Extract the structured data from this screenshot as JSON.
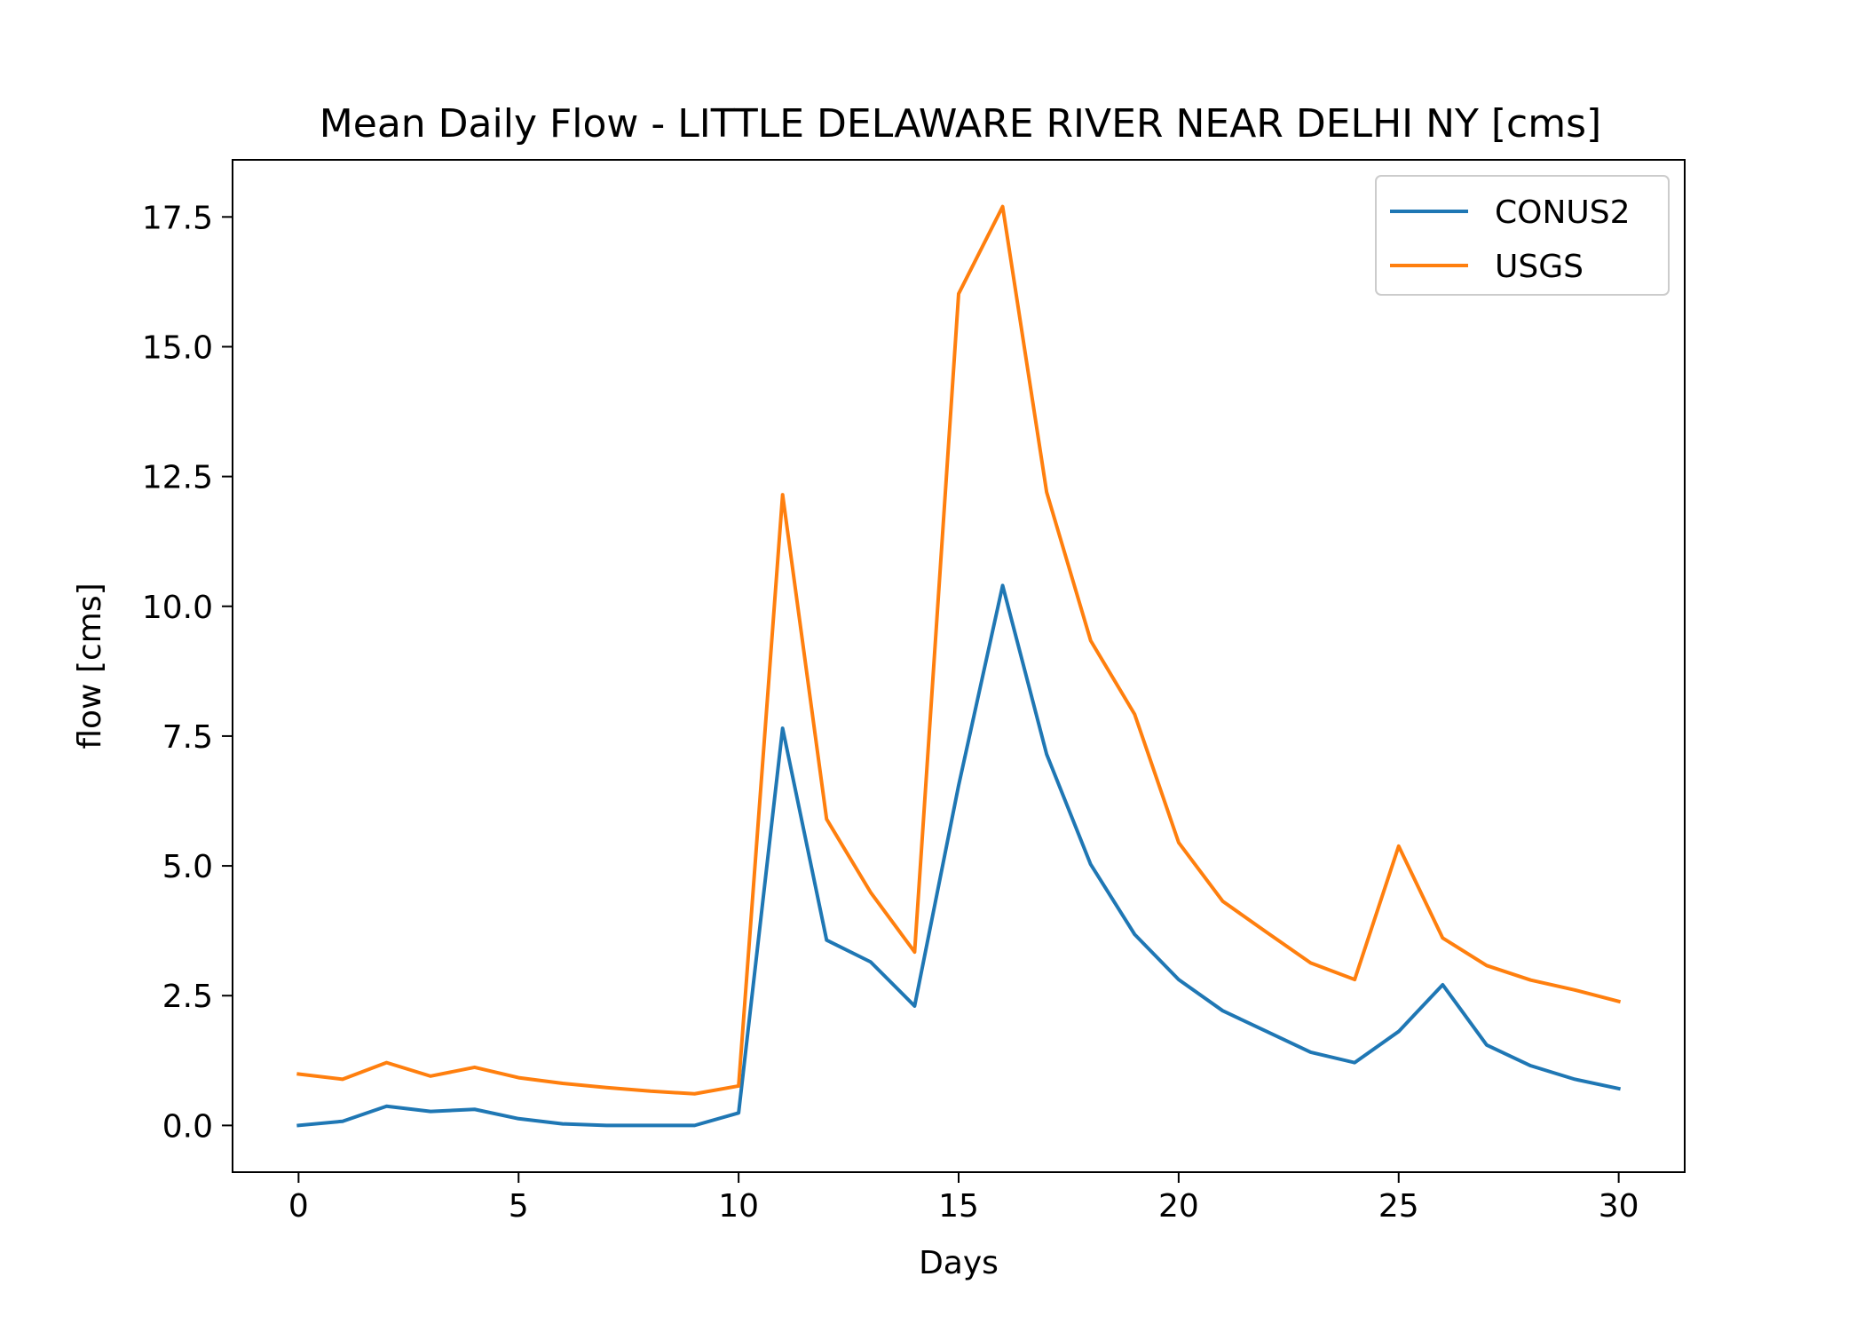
{
  "chart_data": {
    "type": "line",
    "title": "Mean Daily Flow - LITTLE DELAWARE RIVER NEAR DELHI NY [cms]",
    "xlabel": "Days",
    "ylabel": "flow [cms]",
    "xlim": [
      -1.5,
      31.5
    ],
    "ylim": [
      -0.9,
      18.6
    ],
    "xticks": [
      0,
      5,
      10,
      15,
      20,
      25,
      30
    ],
    "xtick_labels": [
      "0",
      "5",
      "10",
      "15",
      "20",
      "25",
      "30"
    ],
    "yticks": [
      0,
      2.5,
      5,
      7.5,
      10,
      12.5,
      15,
      17.5
    ],
    "ytick_labels": [
      "0.0",
      "2.5",
      "5.0",
      "7.5",
      "10.0",
      "12.5",
      "15.0",
      "17.5"
    ],
    "grid": false,
    "legend_position": "top-right",
    "x": [
      0,
      1,
      2,
      3,
      4,
      5,
      6,
      7,
      8,
      9,
      10,
      11,
      12,
      13,
      14,
      15,
      16,
      17,
      18,
      19,
      20,
      21,
      22,
      23,
      24,
      25,
      26,
      27,
      28,
      29,
      30
    ],
    "series": [
      {
        "name": "CONUS2",
        "color": "#1f77b4",
        "values": [
          0.0,
          0.08,
          0.37,
          0.27,
          0.31,
          0.13,
          0.03,
          0.0,
          0.0,
          0.0,
          0.24,
          7.65,
          3.57,
          3.15,
          2.3,
          6.55,
          10.4,
          7.15,
          5.03,
          3.68,
          2.81,
          2.21,
          1.81,
          1.41,
          1.21,
          1.81,
          2.71,
          1.55,
          1.15,
          0.89,
          0.71
        ]
      },
      {
        "name": "USGS",
        "color": "#ff7f0e",
        "values": [
          0.99,
          0.89,
          1.21,
          0.95,
          1.12,
          0.92,
          0.81,
          0.73,
          0.66,
          0.61,
          0.76,
          12.15,
          5.9,
          4.49,
          3.34,
          16.02,
          17.7,
          12.2,
          9.34,
          7.92,
          5.45,
          4.32,
          3.72,
          3.13,
          2.81,
          5.38,
          3.61,
          3.08,
          2.8,
          2.61,
          2.39
        ]
      }
    ]
  }
}
